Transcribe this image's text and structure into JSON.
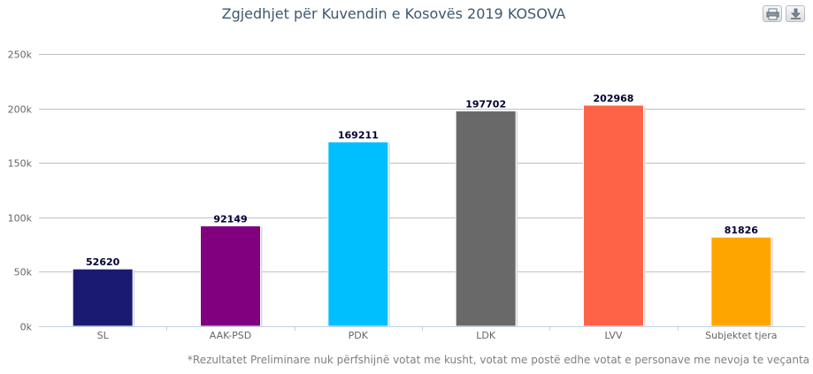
{
  "chart_data": {
    "type": "bar",
    "title": "Zgjedhjet për Kuvendin e Kosovës 2019 KOSOVA",
    "categories": [
      "SL",
      "AAK-PSD",
      "PDK",
      "LDK",
      "LVV",
      "Subjektet tjera"
    ],
    "values": [
      52620,
      92149,
      169211,
      197702,
      202968,
      81826
    ],
    "data_labels": [
      "52620",
      "92149",
      "169211",
      "197702",
      "202968",
      "81826"
    ],
    "colors": [
      "#1b1a72",
      "#800080",
      "#00bfff",
      "#696969",
      "#ff6347",
      "#ffa500"
    ],
    "ylim": [
      0,
      250000
    ],
    "yticks": [
      0,
      50000,
      100000,
      150000,
      200000,
      250000
    ],
    "ytick_labels": [
      "0k",
      "50k",
      "100k",
      "150k",
      "200k",
      "250k"
    ],
    "xlabel": "",
    "ylabel": "",
    "grid": true,
    "legend": "none"
  },
  "footnote": "*Rezultatet Preliminare nuk përfshijnë votat me kusht, votat me postë edhe votat e personave me nevoja te veçanta",
  "toolbar": {
    "print_icon": "printer-icon",
    "download_icon": "download-icon"
  }
}
